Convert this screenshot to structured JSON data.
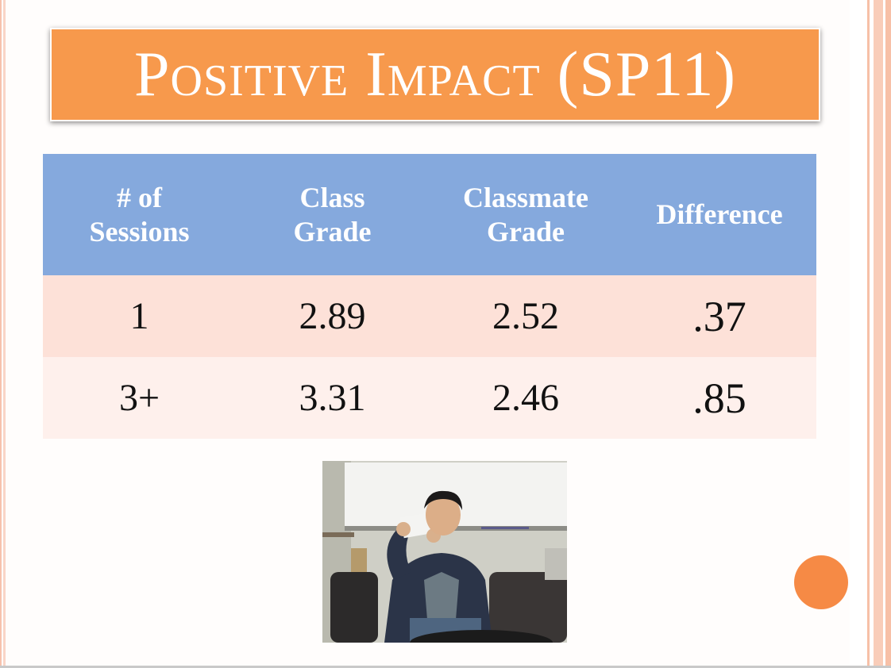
{
  "slide": {
    "title": "Positive Impact (SP11)",
    "table": {
      "headers": [
        {
          "line1": "# of",
          "line2": "Sessions"
        },
        {
          "line1": "Class",
          "line2": "Grade"
        },
        {
          "line1": "Classmate",
          "line2": "Grade"
        },
        {
          "line1": "Difference",
          "line2": ""
        }
      ],
      "rows": [
        {
          "sessions": "1",
          "class_grade": "2.89",
          "classmate_grade": "2.52",
          "difference": ".37"
        },
        {
          "sessions": "3+",
          "class_grade": "3.31",
          "classmate_grade": "2.46",
          "difference": ".85"
        }
      ]
    },
    "colors": {
      "title_bg": "#f7994c",
      "header_bg": "#85a9dd",
      "row1_bg": "#fde1d8",
      "row2_bg": "#fef0ec",
      "accent_circle": "#f68a45"
    }
  }
}
